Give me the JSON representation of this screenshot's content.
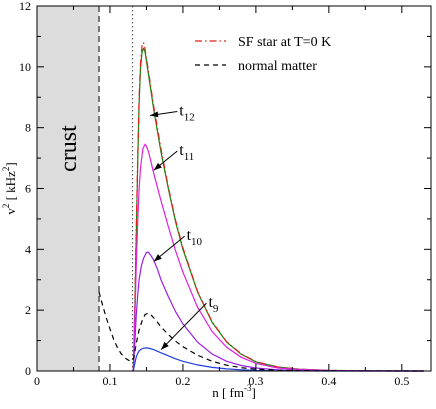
{
  "chart_data": {
    "type": "line",
    "title": "",
    "xlabel": "n [ fm",
    "xlabel_sup": "-3",
    "xlabel_end": "]",
    "ylabel": "v",
    "ylabel_sup1": "2",
    "ylabel_mid": " [ kHz",
    "ylabel_sup2": "2",
    "ylabel_end": "]",
    "xlim": [
      0,
      0.54
    ],
    "ylim": [
      0,
      12
    ],
    "xticks": [
      "0",
      "0.1",
      "0.2",
      "0.3",
      "0.4",
      "0.5"
    ],
    "xtick_values": [
      0,
      0.1,
      0.2,
      0.3,
      0.4,
      0.5
    ],
    "yticks": [
      "0",
      "2",
      "4",
      "6",
      "8",
      "10",
      "12"
    ],
    "ytick_values": [
      0,
      2,
      4,
      6,
      8,
      10,
      12
    ],
    "grid": false,
    "legend_position": "top-right",
    "legend": [
      {
        "label": "SF star at T=0 K",
        "color": "#e0201c",
        "dash": "dashdot"
      },
      {
        "label": "normal matter",
        "color": "#000000",
        "dash": "dashed"
      }
    ],
    "crust": {
      "label": "crust",
      "x_end": 0.085,
      "fill": "#dcdcdc"
    },
    "vertical_line_dotted_x": 0.131,
    "series": [
      {
        "name": "t",
        "sub": "12",
        "color": "#0a8a0a",
        "dash": "solid",
        "x": [
          0.132,
          0.134,
          0.136,
          0.138,
          0.14,
          0.142,
          0.144,
          0.146,
          0.148,
          0.15,
          0.155,
          0.16,
          0.17,
          0.18,
          0.19,
          0.2,
          0.22,
          0.24,
          0.26,
          0.28,
          0.3,
          0.33,
          0.36,
          0.4,
          0.45,
          0.53
        ],
        "y": [
          0,
          2.0,
          4.4,
          6.8,
          8.8,
          10.0,
          10.5,
          10.6,
          10.5,
          10.2,
          9.4,
          8.6,
          7.2,
          6.0,
          4.9,
          4.0,
          2.6,
          1.6,
          0.95,
          0.55,
          0.3,
          0.13,
          0.06,
          0.02,
          0.005,
          0
        ]
      },
      {
        "name": "SF star at T=0 K",
        "color": "#e0201c",
        "dash": "dashdot",
        "x": [
          0.132,
          0.134,
          0.136,
          0.138,
          0.14,
          0.142,
          0.144,
          0.146,
          0.148,
          0.15,
          0.155,
          0.16,
          0.17,
          0.18,
          0.19,
          0.2,
          0.22,
          0.24,
          0.26,
          0.28,
          0.3,
          0.33,
          0.36,
          0.4,
          0.45,
          0.53
        ],
        "y": [
          0,
          2.1,
          4.6,
          7.0,
          9.0,
          10.2,
          10.7,
          10.8,
          10.6,
          10.3,
          9.5,
          8.7,
          7.3,
          6.05,
          4.95,
          4.05,
          2.62,
          1.62,
          0.96,
          0.56,
          0.31,
          0.13,
          0.06,
          0.02,
          0.005,
          0
        ]
      },
      {
        "name": "t",
        "sub": "11",
        "color": "#e020e0",
        "dash": "solid",
        "x": [
          0.132,
          0.134,
          0.136,
          0.138,
          0.14,
          0.142,
          0.145,
          0.148,
          0.15,
          0.153,
          0.156,
          0.16,
          0.17,
          0.18,
          0.19,
          0.2,
          0.22,
          0.24,
          0.26,
          0.28,
          0.3,
          0.33,
          0.36,
          0.4,
          0.45,
          0.53
        ],
        "y": [
          0,
          1.6,
          3.4,
          4.9,
          6.0,
          6.7,
          7.3,
          7.45,
          7.4,
          7.2,
          6.9,
          6.5,
          5.6,
          4.75,
          3.95,
          3.25,
          2.1,
          1.3,
          0.78,
          0.45,
          0.25,
          0.1,
          0.05,
          0.015,
          0.004,
          0
        ]
      },
      {
        "name": "t",
        "sub": "10",
        "color": "#9a20e0",
        "dash": "solid",
        "x": [
          0.132,
          0.134,
          0.136,
          0.138,
          0.14,
          0.143,
          0.146,
          0.15,
          0.153,
          0.156,
          0.16,
          0.165,
          0.17,
          0.18,
          0.19,
          0.2,
          0.22,
          0.24,
          0.26,
          0.28,
          0.3,
          0.33,
          0.36,
          0.4,
          0.45,
          0.53
        ],
        "y": [
          0,
          0.9,
          1.8,
          2.5,
          3.0,
          3.45,
          3.7,
          3.9,
          3.9,
          3.8,
          3.65,
          3.35,
          3.0,
          2.45,
          1.95,
          1.55,
          0.95,
          0.56,
          0.32,
          0.18,
          0.1,
          0.04,
          0.015,
          0.005,
          0.001,
          0
        ]
      },
      {
        "name": "t",
        "sub": "9",
        "color": "#1f3fe0",
        "dash": "solid",
        "x": [
          0.132,
          0.134,
          0.136,
          0.138,
          0.14,
          0.143,
          0.146,
          0.15,
          0.155,
          0.16,
          0.17,
          0.18,
          0.19,
          0.2,
          0.22,
          0.24,
          0.26,
          0.28,
          0.3,
          0.33,
          0.36,
          0.4,
          0.53
        ],
        "y": [
          0,
          0.25,
          0.45,
          0.58,
          0.66,
          0.72,
          0.75,
          0.76,
          0.74,
          0.7,
          0.6,
          0.5,
          0.4,
          0.32,
          0.2,
          0.12,
          0.07,
          0.04,
          0.02,
          0.008,
          0.003,
          0.001,
          0
        ]
      },
      {
        "name": "normal matter",
        "color": "#000000",
        "dash": "dashed",
        "x": [
          0.085,
          0.09,
          0.095,
          0.1,
          0.105,
          0.11,
          0.115,
          0.12,
          0.125,
          0.13,
          0.133,
          0.136,
          0.14,
          0.144,
          0.148,
          0.152,
          0.156,
          0.16,
          0.165,
          0.17,
          0.18,
          0.19,
          0.2,
          0.22,
          0.24,
          0.26,
          0.28,
          0.3,
          0.33,
          0.36,
          0.4,
          0.53
        ],
        "y": [
          2.6,
          2.15,
          1.75,
          1.38,
          1.05,
          0.78,
          0.58,
          0.44,
          0.36,
          0.32,
          0.45,
          0.9,
          1.35,
          1.65,
          1.85,
          1.9,
          1.85,
          1.75,
          1.6,
          1.45,
          1.2,
          0.98,
          0.8,
          0.52,
          0.32,
          0.19,
          0.11,
          0.06,
          0.025,
          0.01,
          0.003,
          0
        ]
      }
    ],
    "annotations": [
      {
        "label": "t",
        "sub": "12",
        "text_x": 0.195,
        "text_y": 8.4,
        "arrow_to": [
          0.155,
          8.4
        ]
      },
      {
        "label": "t",
        "sub": "11",
        "text_x": 0.195,
        "text_y": 7.1,
        "arrow_to": [
          0.16,
          6.6
        ]
      },
      {
        "label": "t",
        "sub": "10",
        "text_x": 0.205,
        "text_y": 4.3,
        "arrow_to": [
          0.16,
          3.6
        ]
      },
      {
        "label": "t",
        "sub": "9",
        "text_x": 0.235,
        "text_y": 2.1,
        "arrow_to": [
          0.17,
          0.7
        ]
      }
    ]
  }
}
